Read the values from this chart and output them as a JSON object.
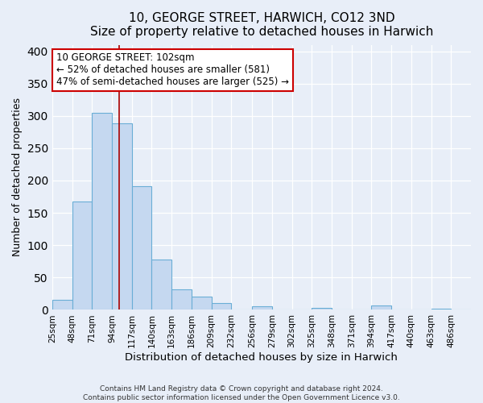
{
  "title": "10, GEORGE STREET, HARWICH, CO12 3ND",
  "subtitle": "Size of property relative to detached houses in Harwich",
  "xlabel": "Distribution of detached houses by size in Harwich",
  "ylabel": "Number of detached properties",
  "bin_labels": [
    "25sqm",
    "48sqm",
    "71sqm",
    "94sqm",
    "117sqm",
    "140sqm",
    "163sqm",
    "186sqm",
    "209sqm",
    "232sqm",
    "256sqm",
    "279sqm",
    "302sqm",
    "325sqm",
    "348sqm",
    "371sqm",
    "394sqm",
    "417sqm",
    "440sqm",
    "463sqm",
    "486sqm"
  ],
  "bar_values": [
    15,
    168,
    305,
    288,
    191,
    78,
    32,
    20,
    10,
    0,
    5,
    0,
    0,
    3,
    0,
    0,
    7,
    0,
    0,
    2,
    0
  ],
  "bin_edges": [
    25,
    48,
    71,
    94,
    117,
    140,
    163,
    186,
    209,
    232,
    256,
    279,
    302,
    325,
    348,
    371,
    394,
    417,
    440,
    463,
    486,
    509
  ],
  "property_size": 102,
  "bar_color": "#c5d8f0",
  "bar_edge_color": "#6aaed6",
  "vline_color": "#aa0000",
  "vline_x": 102,
  "annotation_box_color": "#ffffff",
  "annotation_box_edge": "#cc0000",
  "annotation_line1": "10 GEORGE STREET: 102sqm",
  "annotation_line2": "← 52% of detached houses are smaller (581)",
  "annotation_line3": "47% of semi-detached houses are larger (525) →",
  "ylim": [
    0,
    410
  ],
  "yticks": [
    0,
    50,
    100,
    150,
    200,
    250,
    300,
    350,
    400
  ],
  "footer_line1": "Contains HM Land Registry data © Crown copyright and database right 2024.",
  "footer_line2": "Contains public sector information licensed under the Open Government Licence v3.0.",
  "bg_color": "#e8eef8",
  "plot_bg_color": "#e8eef8",
  "grid_color": "#ffffff",
  "title_fontsize": 11,
  "subtitle_fontsize": 10
}
